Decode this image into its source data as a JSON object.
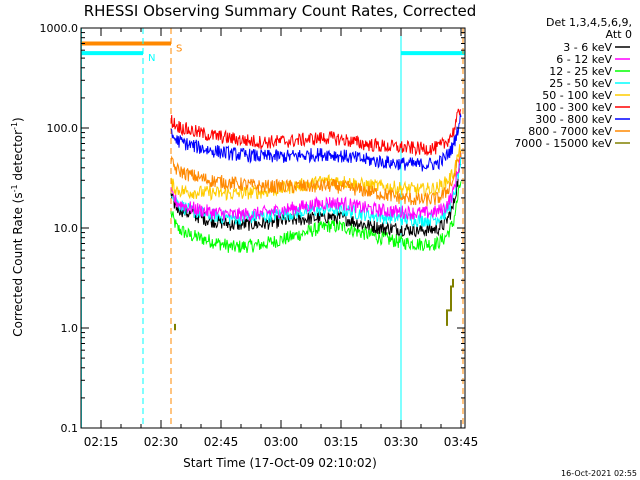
{
  "chart_data": {
    "type": "line",
    "title": "RHESSI Observing Summary Count Rates, Corrected",
    "xlabel": "Start Time (17-Oct-09 02:10:02)",
    "ylabel": "Corrected Count Rate (s⁻¹ detector⁻¹)",
    "ylabel_parts": {
      "prefix": "Corrected Count Rate (s",
      "exp1": "-1",
      "mid": " detector",
      "exp2": "-1",
      "suffix": ")"
    },
    "yscale": "log",
    "ylim": [
      0.1,
      1000
    ],
    "xlim_minutes": [
      0,
      96
    ],
    "x_ticks": [
      {
        "t": 5,
        "label": "02:15"
      },
      {
        "t": 20,
        "label": "02:30"
      },
      {
        "t": 35,
        "label": "02:45"
      },
      {
        "t": 50,
        "label": "03:00"
      },
      {
        "t": 65,
        "label": "03:15"
      },
      {
        "t": 80,
        "label": "03:30"
      },
      {
        "t": 95,
        "label": "03:45"
      }
    ],
    "y_ticks": [
      {
        "v": 0.1,
        "label": "0.1"
      },
      {
        "v": 1,
        "label": "1.0"
      },
      {
        "v": 10,
        "label": "10.0"
      },
      {
        "v": 100,
        "label": "100.0"
      },
      {
        "v": 1000,
        "label": "1000.0"
      }
    ],
    "legend_header": [
      "Det 1,3,4,5,6,9,",
      "Att 0"
    ],
    "series": [
      {
        "name": "3 - 6 keV",
        "color": "#000000",
        "points": [
          [
            22.5,
            20
          ],
          [
            24,
            16
          ],
          [
            27,
            14
          ],
          [
            32,
            12
          ],
          [
            38,
            10.8
          ],
          [
            45,
            11
          ],
          [
            52,
            12
          ],
          [
            58,
            12.5
          ],
          [
            62,
            13
          ],
          [
            66,
            12.5
          ],
          [
            70,
            11
          ],
          [
            75,
            10
          ],
          [
            80,
            9.8
          ],
          [
            85,
            9.5
          ],
          [
            89,
            9.8
          ],
          [
            91,
            11
          ],
          [
            93,
            16
          ],
          [
            95,
            45
          ]
        ]
      },
      {
        "name": "6 - 12 keV",
        "color": "#ff00ff",
        "points": [
          [
            22.5,
            22
          ],
          [
            24,
            18
          ],
          [
            27,
            16
          ],
          [
            32,
            14.5
          ],
          [
            38,
            13.5
          ],
          [
            45,
            14
          ],
          [
            52,
            15.5
          ],
          [
            58,
            17
          ],
          [
            62,
            18
          ],
          [
            66,
            17.5
          ],
          [
            70,
            16
          ],
          [
            75,
            15
          ],
          [
            80,
            14.5
          ],
          [
            85,
            14
          ],
          [
            89,
            14.5
          ],
          [
            91,
            16
          ],
          [
            93,
            22
          ],
          [
            95,
            55
          ]
        ]
      },
      {
        "name": "12 - 25 keV",
        "color": "#00ff00",
        "points": [
          [
            22.5,
            14
          ],
          [
            24,
            10
          ],
          [
            27,
            8.5
          ],
          [
            32,
            7.5
          ],
          [
            38,
            6.4
          ],
          [
            45,
            6.8
          ],
          [
            52,
            8
          ],
          [
            58,
            9.5
          ],
          [
            62,
            10.5
          ],
          [
            66,
            10.2
          ],
          [
            70,
            9
          ],
          [
            75,
            8
          ],
          [
            80,
            7.2
          ],
          [
            85,
            6.9
          ],
          [
            89,
            7
          ],
          [
            91,
            8
          ],
          [
            93,
            11
          ],
          [
            95,
            30
          ]
        ]
      },
      {
        "name": "25 - 50 keV",
        "color": "#00ffff",
        "points": [
          [
            22.5,
            24
          ],
          [
            24,
            18
          ],
          [
            27,
            15
          ],
          [
            32,
            13.5
          ],
          [
            38,
            12.5
          ],
          [
            45,
            13
          ],
          [
            52,
            14
          ],
          [
            58,
            15
          ],
          [
            62,
            15.5
          ],
          [
            66,
            15
          ],
          [
            70,
            14
          ],
          [
            75,
            13
          ],
          [
            80,
            12.5
          ],
          [
            85,
            12
          ],
          [
            89,
            12.5
          ],
          [
            91,
            14
          ],
          [
            93,
            19
          ],
          [
            95,
            48
          ]
        ]
      },
      {
        "name": "50 - 100 keV",
        "color": "#ffcc00",
        "points": [
          [
            22.5,
            28
          ],
          [
            24,
            24
          ],
          [
            27,
            23
          ],
          [
            32,
            22.5
          ],
          [
            38,
            22
          ],
          [
            45,
            23
          ],
          [
            52,
            25.5
          ],
          [
            58,
            28
          ],
          [
            62,
            30
          ],
          [
            66,
            29
          ],
          [
            70,
            27
          ],
          [
            75,
            26
          ],
          [
            80,
            25
          ],
          [
            85,
            24
          ],
          [
            89,
            25
          ],
          [
            91,
            28
          ],
          [
            93,
            35
          ],
          [
            95,
            65
          ]
        ]
      },
      {
        "name": "100 - 300 keV",
        "color": "#ff0000",
        "points": [
          [
            22.5,
            120
          ],
          [
            24,
            105
          ],
          [
            27,
            95
          ],
          [
            32,
            85
          ],
          [
            38,
            78
          ],
          [
            45,
            72
          ],
          [
            52,
            74
          ],
          [
            58,
            78
          ],
          [
            62,
            80
          ],
          [
            66,
            76
          ],
          [
            70,
            70
          ],
          [
            75,
            66
          ],
          [
            80,
            64
          ],
          [
            85,
            62
          ],
          [
            89,
            63
          ],
          [
            91,
            70
          ],
          [
            93,
            90
          ],
          [
            95,
            165
          ]
        ]
      },
      {
        "name": "300 - 800 keV",
        "color": "#0000ff",
        "points": [
          [
            22.5,
            85
          ],
          [
            24,
            75
          ],
          [
            27,
            68
          ],
          [
            32,
            60
          ],
          [
            38,
            55
          ],
          [
            45,
            52
          ],
          [
            52,
            52
          ],
          [
            58,
            54
          ],
          [
            62,
            55
          ],
          [
            66,
            52
          ],
          [
            70,
            49
          ],
          [
            75,
            46
          ],
          [
            80,
            44
          ],
          [
            85,
            43
          ],
          [
            89,
            44
          ],
          [
            91,
            50
          ],
          [
            93,
            65
          ],
          [
            95,
            130
          ]
        ]
      },
      {
        "name": "800 - 7000 keV",
        "color": "#ff8800",
        "points": [
          [
            22.5,
            45
          ],
          [
            24,
            38
          ],
          [
            27,
            34
          ],
          [
            32,
            30
          ],
          [
            38,
            28
          ],
          [
            45,
            26
          ],
          [
            52,
            26
          ],
          [
            58,
            26
          ],
          [
            62,
            26.5
          ],
          [
            66,
            25.5
          ],
          [
            70,
            24
          ],
          [
            75,
            22
          ],
          [
            80,
            20
          ],
          [
            85,
            19
          ],
          [
            89,
            19.5
          ],
          [
            91,
            22
          ],
          [
            93,
            30
          ],
          [
            95,
            60
          ]
        ]
      },
      {
        "name": "7000 - 15000 keV",
        "color": "#808000",
        "points": [
          [
            23.5,
            1.1
          ],
          [
            23.5,
            0.95
          ],
          [
            91.5,
            1.05
          ],
          [
            91.5,
            1.5
          ],
          [
            92.5,
            1.5
          ],
          [
            92.5,
            2.6
          ],
          [
            93,
            2.6
          ],
          [
            93,
            3.1
          ]
        ]
      }
    ],
    "flags": [
      {
        "label": "S",
        "color": "#ff8800",
        "value": 700,
        "t_start": 0,
        "t_end": 22.5
      },
      {
        "label": "N",
        "color": "#00ffff",
        "value": 560,
        "t_start": 0,
        "t_end": 15.5
      },
      {
        "label": "",
        "color": "#00ffff",
        "value": 560,
        "t_start": 80,
        "t_end": 96
      }
    ],
    "vlines": [
      {
        "t": 0.1,
        "color": "#00ffff",
        "style": "solid"
      },
      {
        "t": 15.5,
        "color": "#00ffff",
        "style": "dashed"
      },
      {
        "t": 22.5,
        "color": "#ff8800",
        "style": "dashed"
      },
      {
        "t": 80,
        "color": "#00ffff",
        "style": "solid"
      },
      {
        "t": 95.5,
        "color": "#ff8800",
        "style": "dashed"
      },
      {
        "t": 96,
        "color": "#00ffff",
        "style": "solid"
      }
    ]
  },
  "footer": {
    "timestamp": "16-Oct-2021 02:55"
  }
}
